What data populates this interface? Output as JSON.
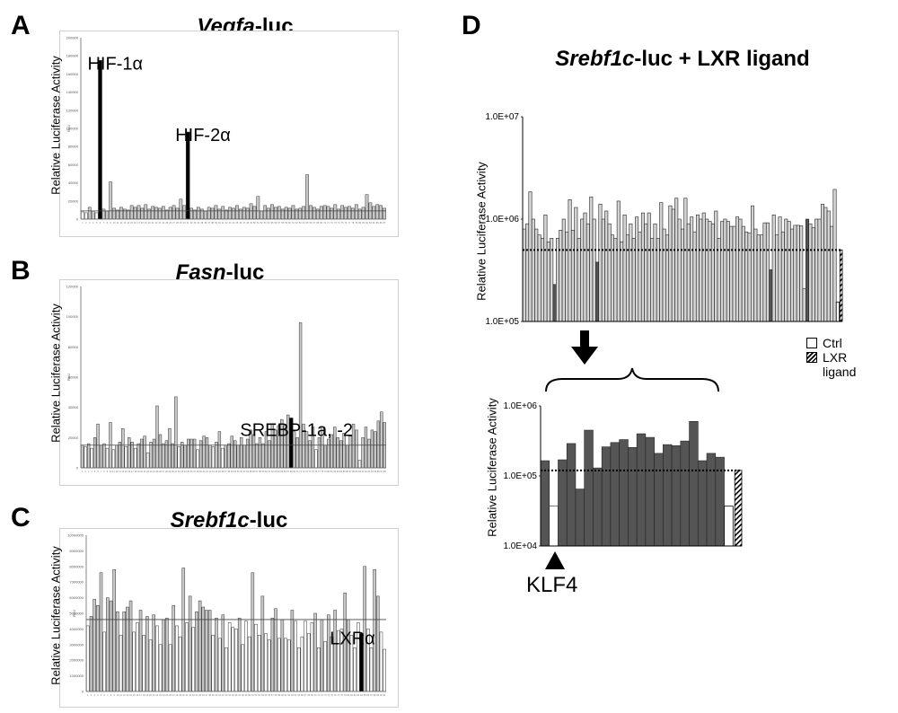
{
  "panels": {
    "A": {
      "letter": "A",
      "title_italic": "Vegfa",
      "title_rest": "-luc"
    },
    "B": {
      "letter": "B",
      "title_italic": "Fasn",
      "title_rest": "-luc"
    },
    "C": {
      "letter": "C",
      "title_italic": "Srebf1c",
      "title_rest": "-luc"
    },
    "D": {
      "letter": "D",
      "title_italic": "Srebf1c",
      "title_rest": "-luc + LXR ligand"
    }
  },
  "legend": {
    "ctrl": "Ctrl",
    "lxr": "LXR ligand"
  },
  "klf4_label": "KLF4",
  "chart_data": [
    {
      "panel": "A",
      "type": "bar",
      "scale": "linear",
      "ylabel": "Relative Luciferase Activity",
      "small_axis_label": "RLU",
      "ylim": [
        0,
        200000
      ],
      "yticks": [
        0,
        20000,
        40000,
        60000,
        80000,
        100000,
        120000,
        140000,
        160000,
        180000,
        200000
      ],
      "baseline": 9000,
      "values": [
        8000,
        7000,
        13000,
        9000,
        7000,
        175000,
        11000,
        9000,
        41000,
        12000,
        10000,
        13000,
        11000,
        10000,
        15000,
        13000,
        15000,
        12000,
        16000,
        11000,
        14000,
        13000,
        12000,
        14000,
        10000,
        13000,
        15000,
        12000,
        22000,
        15000,
        96000,
        12000,
        10000,
        13000,
        11000,
        9000,
        13000,
        12000,
        15000,
        11000,
        14000,
        10000,
        13000,
        12000,
        15000,
        11000,
        13000,
        12000,
        17000,
        14000,
        25000,
        9000,
        15000,
        12000,
        16000,
        13000,
        14000,
        11000,
        13000,
        12000,
        15000,
        11000,
        12000,
        14000,
        49000,
        15000,
        13000,
        11000,
        14000,
        15000,
        14000,
        12000,
        16000,
        11000,
        15000,
        13000,
        14000,
        12000,
        16000,
        11000,
        13000,
        27000,
        18000,
        14000,
        16000,
        15000,
        12000
      ],
      "highlight_indices": [
        5,
        30
      ],
      "annotations": [
        {
          "text": "HIF-1α",
          "index": 5
        },
        {
          "text": "HIF-2α",
          "index": 30
        }
      ]
    },
    {
      "panel": "B",
      "type": "bar",
      "scale": "linear",
      "ylabel": "Relative Luciferase Activity",
      "small_axis_label": "RLU",
      "ylim": [
        0,
        120000
      ],
      "yticks": [
        0,
        20000,
        40000,
        60000,
        80000,
        100000,
        120000
      ],
      "baseline": 15000,
      "values": [
        15000,
        14000,
        16000,
        13000,
        20000,
        29000,
        15000,
        16000,
        13000,
        30000,
        12000,
        15000,
        17000,
        26000,
        14000,
        20000,
        17000,
        13000,
        16000,
        19000,
        21000,
        10000,
        17000,
        19000,
        41000,
        22000,
        16000,
        18000,
        26000,
        16000,
        47000,
        14000,
        17000,
        15000,
        19000,
        19000,
        19000,
        12000,
        18000,
        21000,
        20000,
        15000,
        14000,
        17000,
        24000,
        13000,
        15000,
        16000,
        21000,
        18000,
        15000,
        20000,
        15000,
        19000,
        25000,
        22000,
        16000,
        20000,
        16000,
        24000,
        18000,
        29000,
        25000,
        28000,
        32000,
        28000,
        35000,
        33000,
        24000,
        20000,
        96000,
        29000,
        24000,
        18000,
        27000,
        12000,
        20000,
        27000,
        15000,
        19000,
        22000,
        27000,
        20000,
        18000,
        23000,
        15000,
        21000,
        29000,
        25000,
        5000,
        20000,
        27000,
        19000,
        25000,
        24000,
        31000,
        37000,
        30000
      ],
      "highlight_indices": [
        67
      ],
      "annotations": [
        {
          "text": "SREBP-1a, -2",
          "index": 67
        }
      ]
    },
    {
      "panel": "C",
      "type": "bar",
      "scale": "linear",
      "ylabel": "Relative Luciferase Activity",
      "small_axis_label": "RLU",
      "ylim": [
        0,
        10000000
      ],
      "yticks": [
        0,
        1000000,
        2000000,
        3000000,
        4000000,
        5000000,
        6000000,
        7000000,
        8000000,
        9000000,
        10000000
      ],
      "baseline": 4600000,
      "values": [
        4200000,
        4800000,
        5900000,
        5500000,
        7600000,
        3800000,
        6000000,
        5800000,
        7800000,
        5100000,
        3600000,
        5100000,
        5400000,
        5800000,
        3800000,
        4400000,
        5200000,
        3600000,
        4800000,
        3300000,
        4900000,
        4200000,
        3000000,
        4600000,
        4700000,
        3000000,
        5500000,
        4200000,
        3500000,
        7900000,
        4400000,
        6100000,
        4100000,
        5100000,
        5800000,
        5400000,
        5200000,
        5200000,
        3600000,
        4700000,
        3400000,
        4900000,
        2800000,
        4400000,
        4100000,
        4000000,
        4700000,
        3000000,
        4500000,
        3500000,
        7600000,
        4300000,
        3600000,
        6100000,
        3700000,
        3300000,
        4700000,
        5300000,
        3400000,
        4600000,
        3400000,
        3300000,
        5200000,
        4500000,
        2800000,
        3500000,
        4500000,
        3700000,
        4400000,
        5000000,
        2800000,
        4600000,
        3200000,
        4900000,
        3500000,
        5200000,
        3900000,
        4000000,
        6300000,
        4600000,
        3600000,
        2800000,
        4400000,
        3700000,
        8000000,
        4000000,
        2800000,
        7800000,
        6100000,
        3800000,
        2700000
      ],
      "highlight_indices": [
        83
      ],
      "annotations": [
        {
          "text": "LXRα",
          "index": 83
        }
      ]
    },
    {
      "panel": "D-top",
      "type": "bar",
      "scale": "log",
      "ylabel": "Relative Luciferase Activity",
      "ylim": [
        100000,
        10000000
      ],
      "yticks": [
        "1.0E+05",
        "1.0E+06",
        "1.0E+07"
      ],
      "baseline": 500000,
      "values": [
        800000,
        900000,
        1850000,
        1000000,
        800000,
        700000,
        650000,
        1100000,
        600000,
        650000,
        230000,
        650000,
        780000,
        1000000,
        750000,
        1550000,
        780000,
        1300000,
        650000,
        1000000,
        1150000,
        900000,
        1650000,
        1000000,
        380000,
        1400000,
        1000000,
        1200000,
        900000,
        700000,
        650000,
        1500000,
        600000,
        1100000,
        700000,
        900000,
        650000,
        1050000,
        750000,
        1150000,
        900000,
        1150000,
        650000,
        900000,
        650000,
        1450000,
        800000,
        700000,
        1350000,
        1250000,
        1600000,
        1000000,
        800000,
        1600000,
        900000,
        1050000,
        750000,
        1100000,
        1000000,
        1150000,
        1000000,
        950000,
        900000,
        1200000,
        650000,
        950000,
        1000000,
        950000,
        850000,
        850000,
        1050000,
        1000000,
        850000,
        750000,
        730000,
        1350000,
        800000,
        700000,
        700000,
        920000,
        920000,
        320000,
        1100000,
        700000,
        1050000,
        750000,
        1000000,
        950000,
        800000,
        870000,
        870000,
        860000,
        210000,
        1000000,
        900000,
        830000,
        1000000,
        1000000,
        1400000,
        1300000,
        1200000,
        850000,
        1950000
      ],
      "dark_indices": [
        10,
        24,
        81,
        93
      ],
      "extra_bars": [
        {
          "label": "Ctrl",
          "value": 155000
        },
        {
          "label": "LXR ligand",
          "value": 500000
        }
      ]
    },
    {
      "panel": "D-bottom",
      "type": "bar",
      "scale": "log",
      "ylabel": "Relative Luciferase Activity",
      "ylim": [
        10000,
        1000000
      ],
      "yticks": [
        "1.0E+04",
        "1.0E+05",
        "1.0E+06"
      ],
      "baseline": 120000,
      "values": [
        165000,
        37000,
        170000,
        290000,
        65000,
        450000,
        130000,
        260000,
        300000,
        330000,
        255000,
        400000,
        355000,
        210000,
        280000,
        270000,
        315000,
        600000,
        165000,
        210000,
        185000
      ],
      "white_indices": [
        1
      ],
      "extra_bars": [
        {
          "label": "Ctrl",
          "value": 37000
        },
        {
          "label": "LXR ligand",
          "value": 120000
        }
      ]
    }
  ]
}
